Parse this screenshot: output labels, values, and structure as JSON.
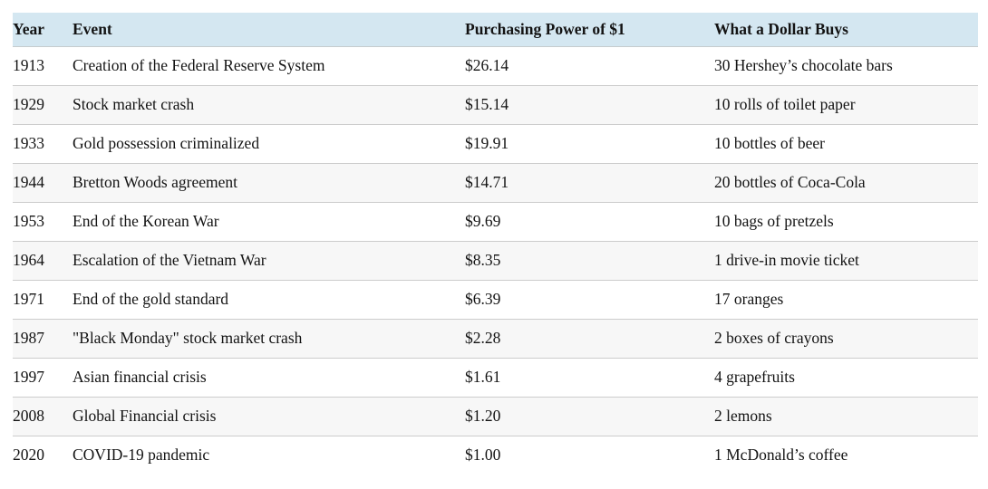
{
  "chart_data": {
    "type": "table",
    "title": "",
    "columns": [
      "Year",
      "Event",
      "Purchasing Power of $1",
      "What a Dollar Buys"
    ],
    "rows": [
      [
        "1913",
        "Creation of the Federal Reserve System",
        "$26.14",
        "30 Hershey’s chocolate bars"
      ],
      [
        "1929",
        "Stock market crash",
        "$15.14",
        "10 rolls of toilet paper"
      ],
      [
        "1933",
        "Gold possession criminalized",
        "$19.91",
        "10 bottles of beer"
      ],
      [
        "1944",
        "Bretton Woods agreement",
        "$14.71",
        "20 bottles of Coca-Cola"
      ],
      [
        "1953",
        "End of the Korean War",
        "$9.69",
        "10 bags of pretzels"
      ],
      [
        "1964",
        "Escalation of the Vietnam War",
        "$8.35",
        "1 drive-in movie ticket"
      ],
      [
        "1971",
        "End of the gold standard",
        "$6.39",
        "17 oranges"
      ],
      [
        "1987",
        "\"Black Monday\" stock market crash",
        "$2.28",
        "2 boxes of crayons"
      ],
      [
        "1997",
        "Asian financial crisis",
        "$1.61",
        "4 grapefruits"
      ],
      [
        "2008",
        "Global Financial crisis",
        "$1.20",
        "2 lemons"
      ],
      [
        "2020",
        "COVID-19 pandemic",
        "$1.00",
        "1 McDonald’s coffee"
      ]
    ],
    "layout_hints": {
      "striped_rows": true,
      "stripe_on": "even data rows (2nd, 4th, ...)",
      "header_background": "#d4e7f1",
      "stripe_background": "#f7f7f7",
      "row_border_color": "#cccccc"
    }
  },
  "colors": {
    "header_bg": "#d4e7f1",
    "stripe_bg": "#f7f7f7",
    "border": "#cccccc",
    "text": "#131313"
  }
}
